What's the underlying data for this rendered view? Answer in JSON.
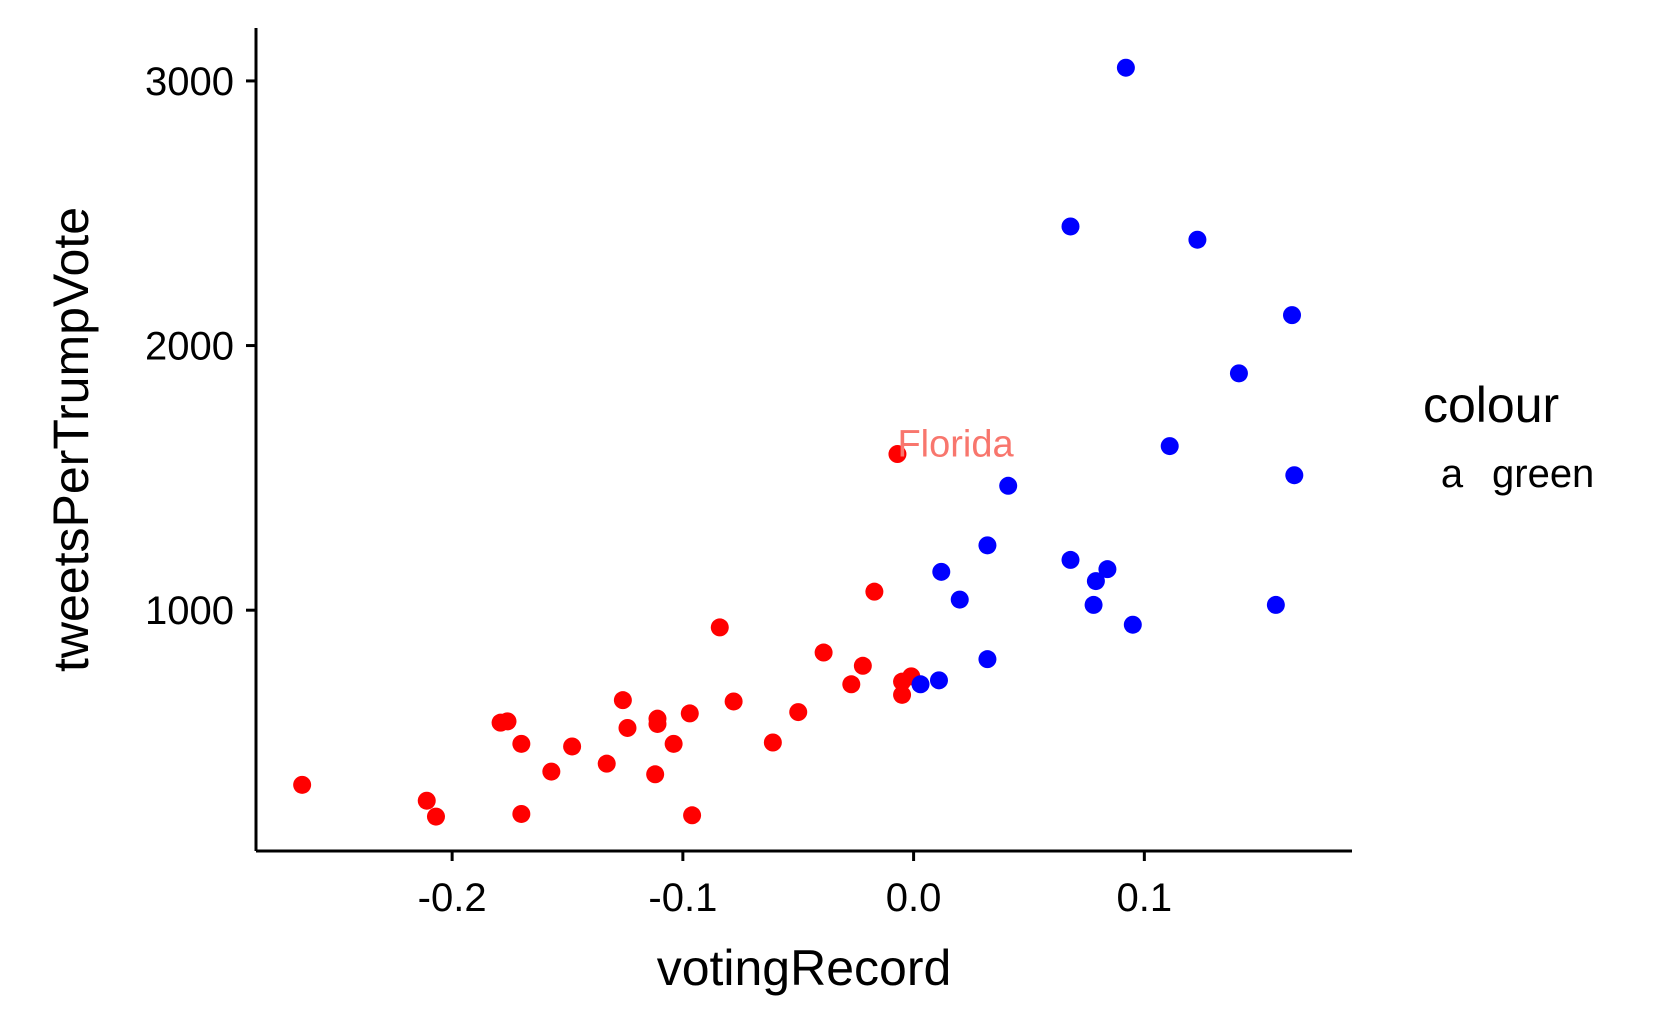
{
  "chart_data": {
    "type": "scatter",
    "title": "",
    "xlabel": "votingRecord",
    "ylabel": "tweetsPerTrumpVote",
    "xlim": [
      -0.285,
      0.19
    ],
    "ylim": [
      90,
      3200
    ],
    "xticks": [
      -0.2,
      -0.1,
      0.0,
      0.1
    ],
    "xtick_labels": [
      "-0.2",
      "-0.1",
      "0.0",
      "0.1"
    ],
    "yticks": [
      1000,
      2000,
      3000
    ],
    "ytick_labels": [
      "1000",
      "2000",
      "3000"
    ],
    "grid": false,
    "legend": {
      "position": "right",
      "title": "colour",
      "entries": [
        {
          "key": "a",
          "label": "green",
          "color": "#F8766D"
        }
      ]
    },
    "annotations": [
      {
        "text": "Florida",
        "x": -0.007,
        "y": 1630,
        "color": "#F8766D"
      }
    ],
    "series": [
      {
        "color": "#FF0000",
        "points": [
          {
            "x": -0.265,
            "y": 340
          },
          {
            "x": -0.211,
            "y": 280
          },
          {
            "x": -0.207,
            "y": 220
          },
          {
            "x": -0.179,
            "y": 575
          },
          {
            "x": -0.176,
            "y": 580
          },
          {
            "x": -0.17,
            "y": 495
          },
          {
            "x": -0.17,
            "y": 230
          },
          {
            "x": -0.157,
            "y": 390
          },
          {
            "x": -0.148,
            "y": 485
          },
          {
            "x": -0.133,
            "y": 420
          },
          {
            "x": -0.126,
            "y": 660
          },
          {
            "x": -0.124,
            "y": 555
          },
          {
            "x": -0.112,
            "y": 380
          },
          {
            "x": -0.111,
            "y": 590
          },
          {
            "x": -0.111,
            "y": 570
          },
          {
            "x": -0.104,
            "y": 495
          },
          {
            "x": -0.097,
            "y": 610
          },
          {
            "x": -0.096,
            "y": 225
          },
          {
            "x": -0.084,
            "y": 935
          },
          {
            "x": -0.078,
            "y": 655
          },
          {
            "x": -0.061,
            "y": 500
          },
          {
            "x": -0.05,
            "y": 615
          },
          {
            "x": -0.039,
            "y": 840
          },
          {
            "x": -0.027,
            "y": 720
          },
          {
            "x": -0.022,
            "y": 790
          },
          {
            "x": -0.017,
            "y": 1070
          },
          {
            "x": -0.007,
            "y": 1590
          },
          {
            "x": -0.005,
            "y": 730
          },
          {
            "x": -0.005,
            "y": 680
          },
          {
            "x": -0.001,
            "y": 750
          }
        ]
      },
      {
        "color": "#0000FF",
        "points": [
          {
            "x": 0.003,
            "y": 720
          },
          {
            "x": 0.011,
            "y": 735
          },
          {
            "x": 0.012,
            "y": 1145
          },
          {
            "x": 0.02,
            "y": 1040
          },
          {
            "x": 0.032,
            "y": 815
          },
          {
            "x": 0.032,
            "y": 1245
          },
          {
            "x": 0.041,
            "y": 1470
          },
          {
            "x": 0.068,
            "y": 2450
          },
          {
            "x": 0.068,
            "y": 1190
          },
          {
            "x": 0.078,
            "y": 1020
          },
          {
            "x": 0.079,
            "y": 1110
          },
          {
            "x": 0.084,
            "y": 1155
          },
          {
            "x": 0.092,
            "y": 3050
          },
          {
            "x": 0.095,
            "y": 945
          },
          {
            "x": 0.111,
            "y": 1620
          },
          {
            "x": 0.123,
            "y": 2400
          },
          {
            "x": 0.141,
            "y": 1895
          },
          {
            "x": 0.157,
            "y": 1020
          },
          {
            "x": 0.164,
            "y": 2115
          },
          {
            "x": 0.165,
            "y": 1510
          }
        ]
      }
    ]
  }
}
